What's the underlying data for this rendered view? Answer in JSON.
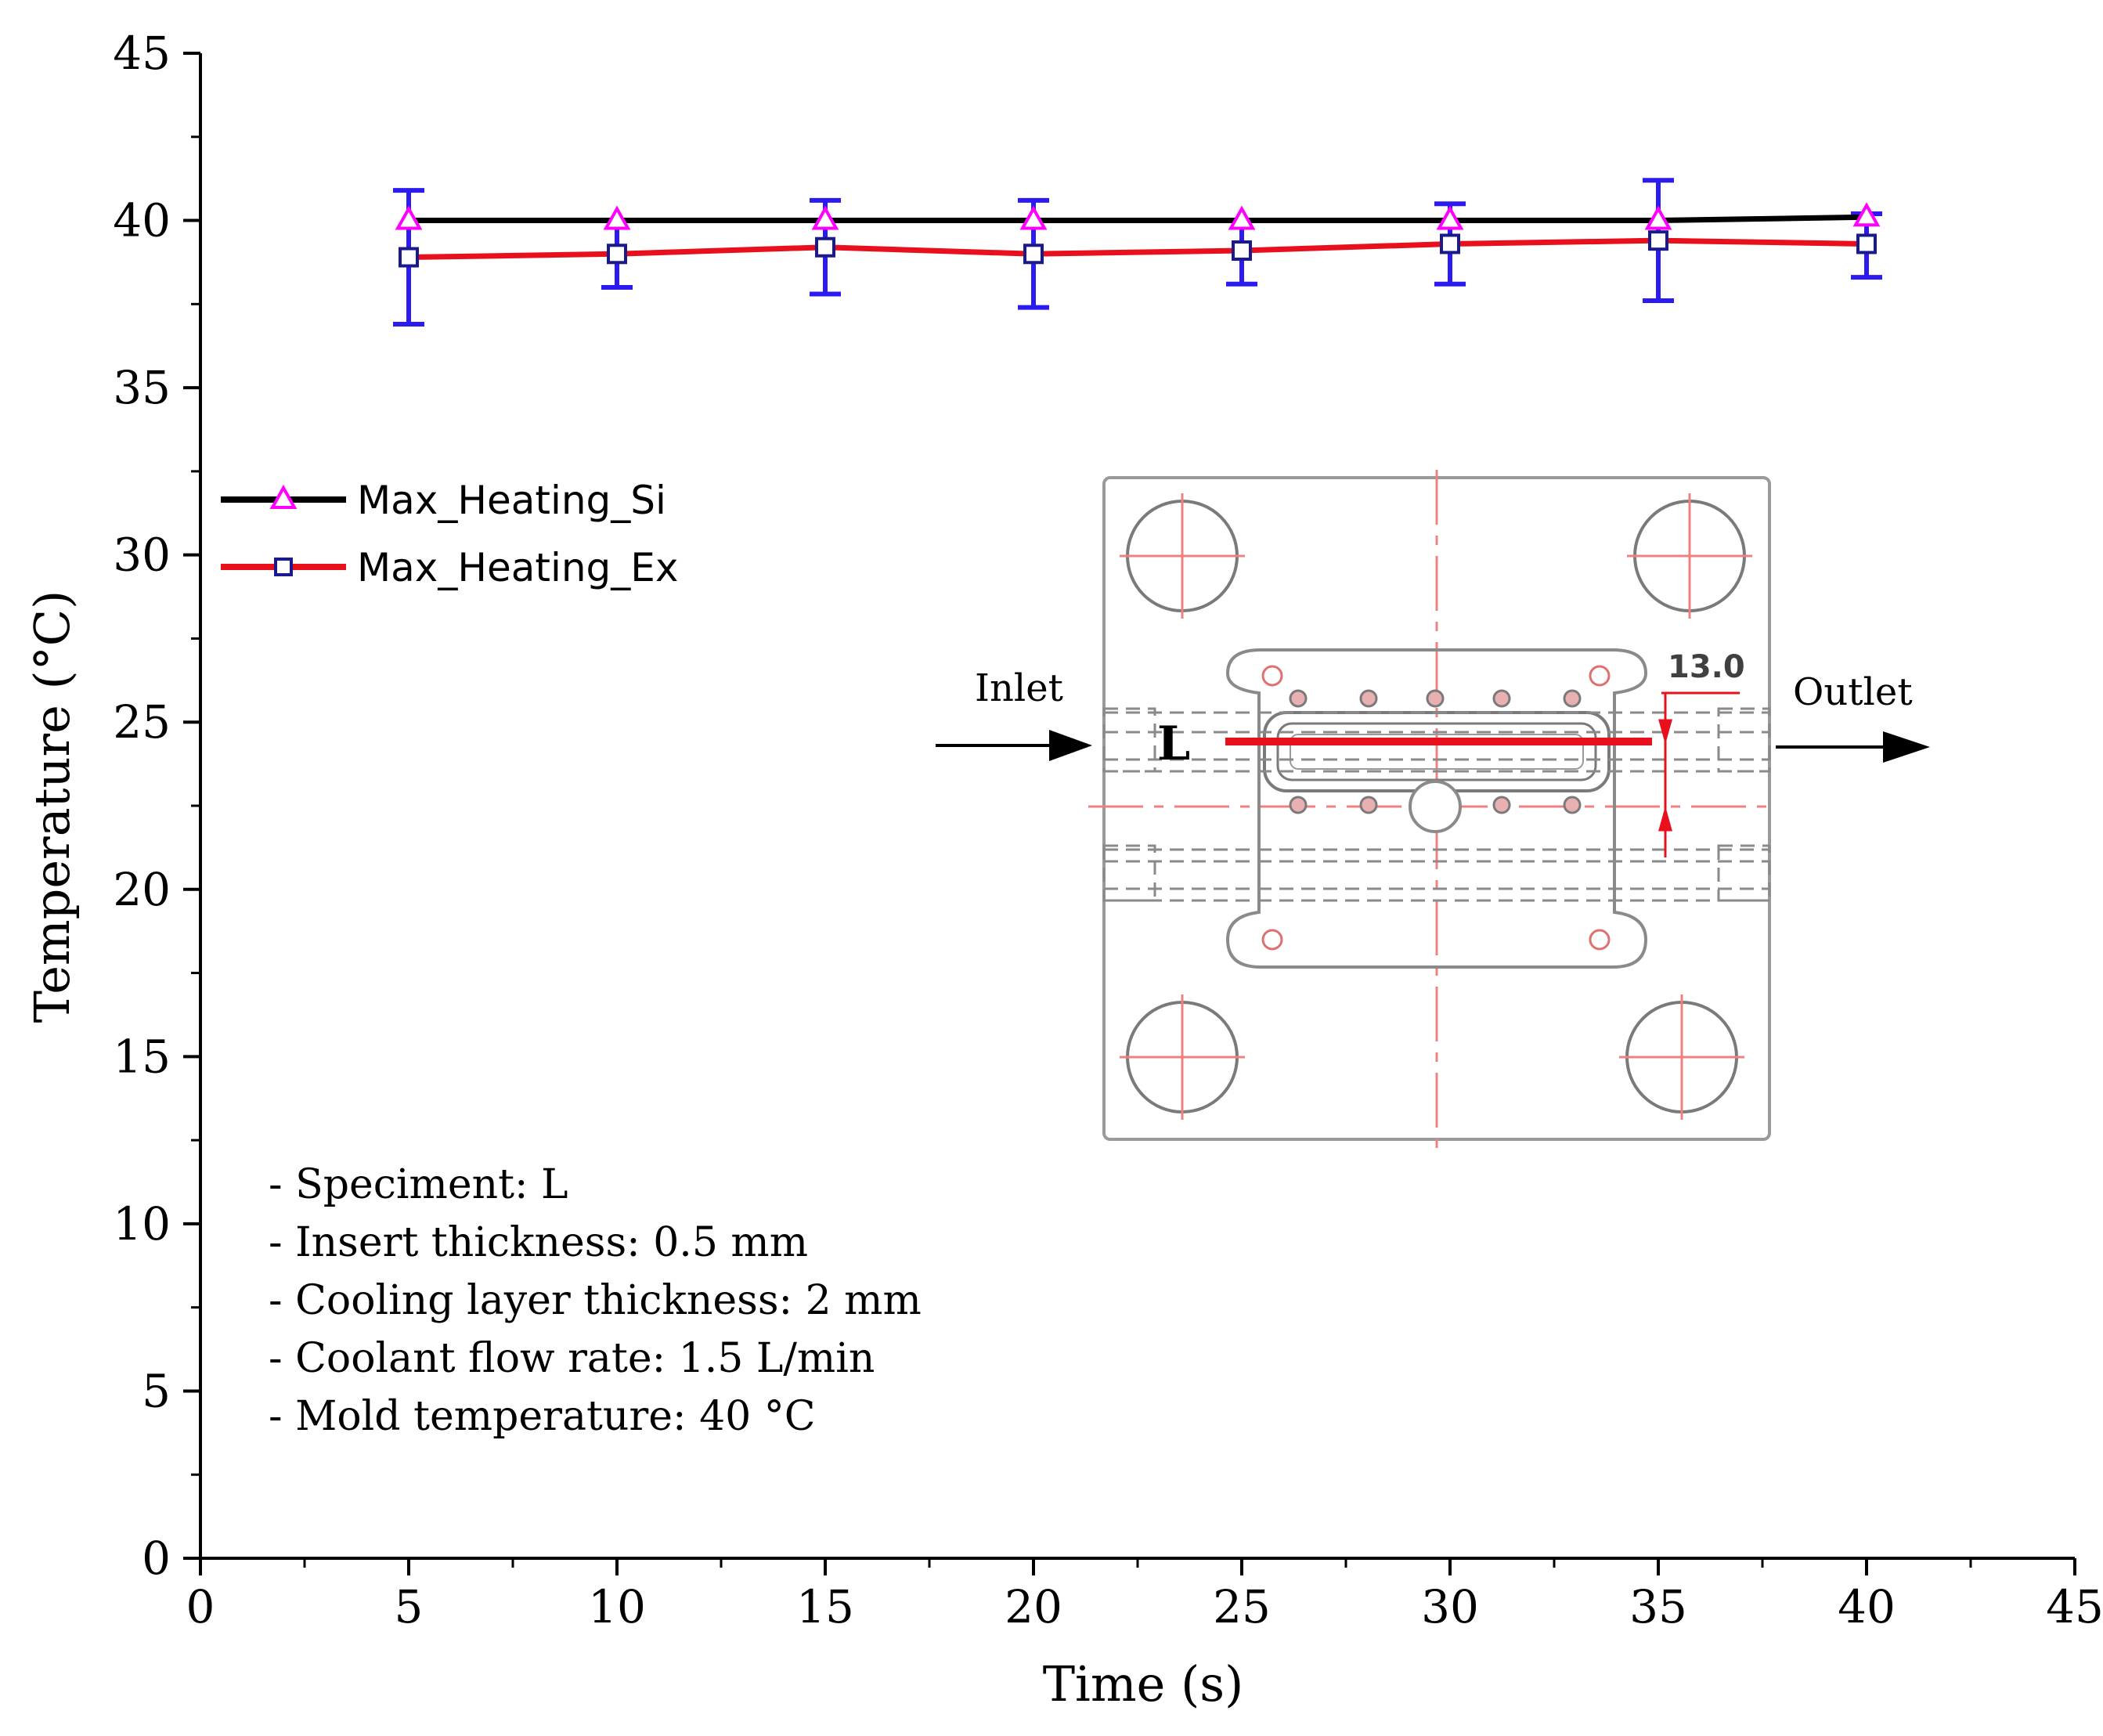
{
  "colors": {
    "axis": "#000000",
    "series_si": "#000000",
    "series_ex": "#e8101c",
    "marker_si": "#ff00ff",
    "marker_ex": "#1a1a8c",
    "error_bar": "#2b1bf0",
    "drawing_line": "#8a8a8a",
    "drawing_accent": "#e8101c"
  },
  "chart_data": {
    "type": "line",
    "xlabel": "Time (s)",
    "ylabel": "Temperature (°C)",
    "xlim": [
      0,
      45
    ],
    "ylim": [
      0,
      45
    ],
    "x_ticks": [
      0,
      5,
      10,
      15,
      20,
      25,
      30,
      35,
      40,
      45
    ],
    "y_ticks": [
      0,
      5,
      10,
      15,
      20,
      25,
      30,
      35,
      40,
      45
    ],
    "x_tick_labels": [
      "0",
      "5",
      "10",
      "15",
      "20",
      "25",
      "30",
      "35",
      "40",
      "45"
    ],
    "y_tick_labels": [
      "0",
      "5",
      "10",
      "15",
      "20",
      "25",
      "30",
      "35",
      "40",
      "45"
    ],
    "legend_position": "middle-left",
    "series": [
      {
        "name": "Max_Heating_Si",
        "marker": "triangle",
        "x": [
          5,
          10,
          15,
          20,
          25,
          30,
          35,
          40
        ],
        "values": [
          40.0,
          40.0,
          40.0,
          40.0,
          40.0,
          40.0,
          40.0,
          40.1
        ]
      },
      {
        "name": "Max_Heating_Ex",
        "marker": "square",
        "x": [
          5,
          10,
          15,
          20,
          25,
          30,
          35,
          40
        ],
        "values": [
          38.9,
          39.0,
          39.2,
          39.0,
          39.1,
          39.3,
          39.4,
          39.3
        ],
        "error_low": [
          36.9,
          38.0,
          37.8,
          37.4,
          38.1,
          38.1,
          37.6,
          38.3
        ],
        "error_high": [
          40.9,
          40.0,
          40.6,
          40.6,
          40.0,
          40.5,
          41.2,
          40.2
        ]
      }
    ],
    "annotations": [
      "- Speciment: L",
      "- Insert thickness: 0.5 mm",
      "- Cooling layer thickness: 2  mm",
      "- Coolant flow rate: 1.5 L/min",
      "- Mold temperature: 40 °C"
    ]
  },
  "inset": {
    "inlet_label": "Inlet",
    "outlet_label": "Outlet",
    "specimen_label": "L",
    "dimension_label": "13.0"
  }
}
